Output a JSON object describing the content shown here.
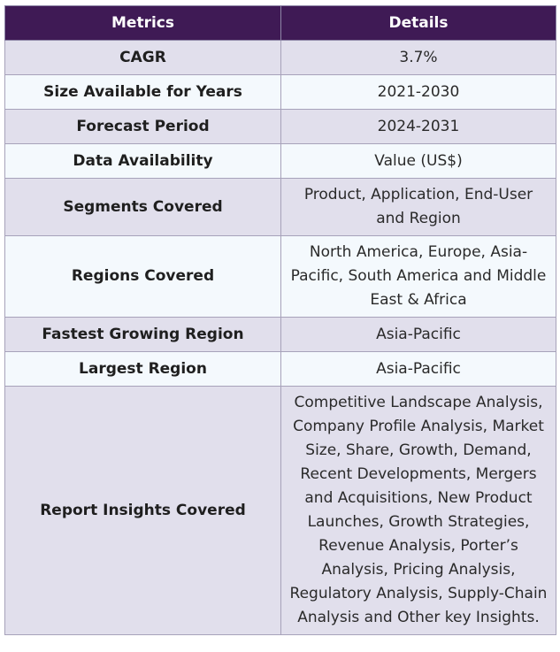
{
  "table": {
    "headers": [
      "Metrics",
      "Details"
    ],
    "rows": [
      {
        "metric": "CAGR",
        "detail": "3.7%"
      },
      {
        "metric": "Size Available for Years",
        "detail": "2021-2030"
      },
      {
        "metric": "Forecast Period",
        "detail": "2024-2031"
      },
      {
        "metric": "Data Availability",
        "detail": "Value (US$)"
      },
      {
        "metric": "Segments Covered",
        "detail": "Product, Application, End-User and Region"
      },
      {
        "metric": "Regions Covered",
        "detail": "North America, Europe, Asia-Pacific, South America and Middle East & Africa"
      },
      {
        "metric": "Fastest Growing Region",
        "detail": "Asia-Pacific"
      },
      {
        "metric": "Largest Region",
        "detail": "Asia-Pacific"
      },
      {
        "metric": "Report Insights Covered",
        "detail": "Competitive Landscape Analysis, Company Profile Analysis, Market Size, Share, Growth, Demand, Recent Developments, Mergers and Acquisitions, New Product Launches, Growth Strategies, Revenue Analysis, Porter’s Analysis, Pricing Analysis, Regulatory Analysis, Supply-Chain Analysis and Other key Insights."
      }
    ]
  },
  "colors": {
    "header_bg": "#3f1a55",
    "row_odd_bg": "#e1dfec",
    "row_even_bg": "#f4f9fd"
  }
}
